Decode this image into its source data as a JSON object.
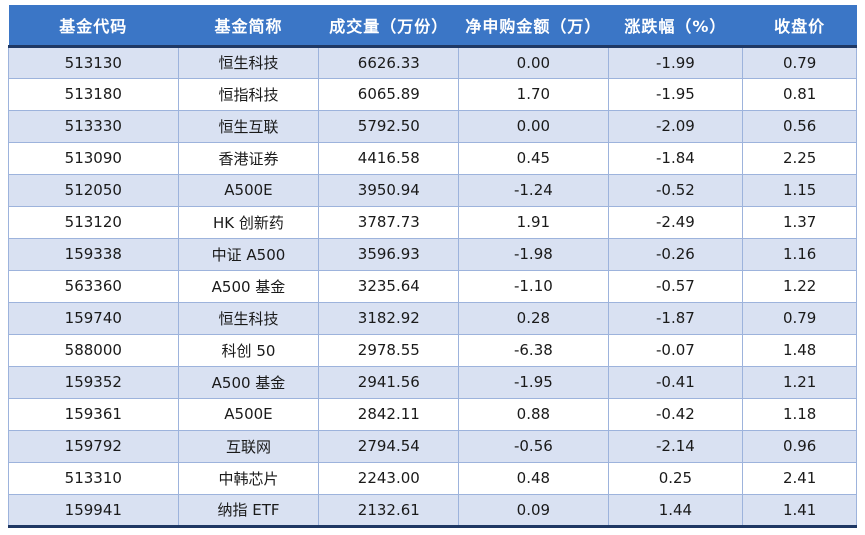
{
  "chart_data": {
    "type": "table",
    "columns": [
      "基金代码",
      "基金简称",
      "成交量（万份）",
      "净申购金额（万）",
      "涨跌幅（%）",
      "收盘价"
    ],
    "rows": [
      [
        "513130",
        "恒生科技",
        "6626.33",
        "0.00",
        "-1.99",
        "0.79"
      ],
      [
        "513180",
        "恒指科技",
        "6065.89",
        "1.70",
        "-1.95",
        "0.81"
      ],
      [
        "513330",
        "恒生互联",
        "5792.50",
        "0.00",
        "-2.09",
        "0.56"
      ],
      [
        "513090",
        "香港证券",
        "4416.58",
        "0.45",
        "-1.84",
        "2.25"
      ],
      [
        "512050",
        "A500E",
        "3950.94",
        "-1.24",
        "-0.52",
        "1.15"
      ],
      [
        "513120",
        "HK 创新药",
        "3787.73",
        "1.91",
        "-2.49",
        "1.37"
      ],
      [
        "159338",
        "中证 A500",
        "3596.93",
        "-1.98",
        "-0.26",
        "1.16"
      ],
      [
        "563360",
        "A500 基金",
        "3235.64",
        "-1.10",
        "-0.57",
        "1.22"
      ],
      [
        "159740",
        "恒生科技",
        "3182.92",
        "0.28",
        "-1.87",
        "0.79"
      ],
      [
        "588000",
        "科创 50",
        "2978.55",
        "-6.38",
        "-0.07",
        "1.48"
      ],
      [
        "159352",
        "A500 基金",
        "2941.56",
        "-1.95",
        "-0.41",
        "1.21"
      ],
      [
        "159361",
        "A500E",
        "2842.11",
        "0.88",
        "-0.42",
        "1.18"
      ],
      [
        "159792",
        "互联网",
        "2794.54",
        "-0.56",
        "-2.14",
        "0.96"
      ],
      [
        "513310",
        "中韩芯片",
        "2243.00",
        "0.48",
        "0.25",
        "2.41"
      ],
      [
        "159941",
        "纳指 ETF",
        "2132.61",
        "0.09",
        "1.44",
        "1.41"
      ]
    ]
  },
  "colors": {
    "header_bg": "#3B76C6",
    "header_text": "#FFFFFF",
    "row_alt_bg": "#D9E1F2",
    "row_bg": "#FFFFFF",
    "grid_line": "#9DB3DC",
    "heavy_border": "#1F3864",
    "data_text": "#1A1A1A"
  }
}
